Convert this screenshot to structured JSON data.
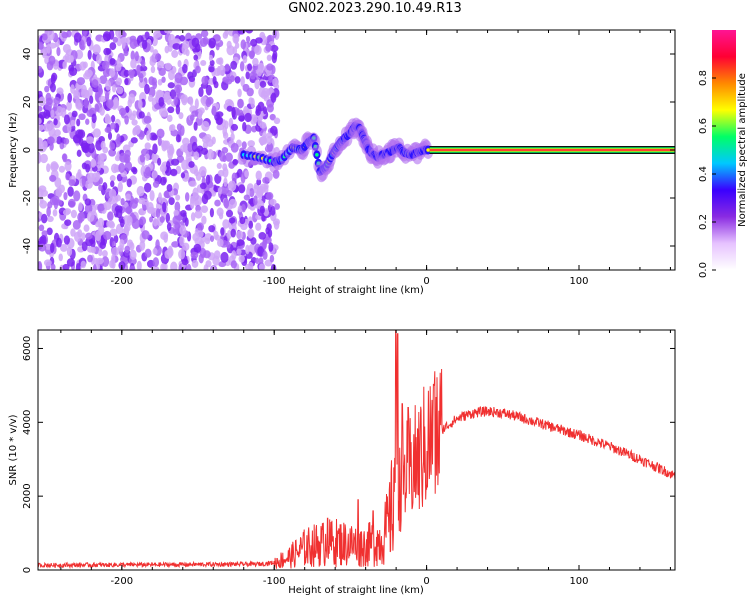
{
  "title": "GN02.2023.290.10.49.R13",
  "colors": {
    "snr_line": "#f03030",
    "cloud": "#7a22f0",
    "cloud_light": "#cfa6f8",
    "colorbar_stops": [
      "#ffffff",
      "#e6c2ff",
      "#8a2be2",
      "#3a00ff",
      "#00c8ff",
      "#00ff66",
      "#ffff00",
      "#ff8800",
      "#ff0033",
      "#ff1493"
    ]
  },
  "chart_data": [
    {
      "type": "heatmap",
      "xlabel": "Height of straight line (km)",
      "ylabel": "Frequency (Hz)",
      "xlim": [
        -255,
        163
      ],
      "ylim": [
        -50,
        50
      ],
      "xticks": [
        -200,
        -100,
        0,
        100
      ],
      "yticks": [
        -40,
        -20,
        0,
        20,
        40
      ],
      "grid": false,
      "colorbar": {
        "label": "Normalized spectral amplitude",
        "range": [
          0,
          1
        ],
        "ticks": [
          "0.0",
          "0.2",
          "0.4",
          "0.6",
          "0.8"
        ]
      },
      "noise_region_x": [
        -255,
        -98
      ],
      "ridge": {
        "x": [
          -120,
          -110,
          -100,
          -95,
          -88,
          -82,
          -78,
          -74,
          -70,
          -66,
          -62,
          -58,
          -54,
          -50,
          -47,
          -44,
          -42,
          -40,
          -38,
          -35,
          -32,
          -29,
          -25,
          -22,
          -18,
          -15,
          -10,
          -6,
          -2,
          2
        ],
        "freq": [
          -2,
          -3,
          -5,
          -4,
          1,
          0,
          3,
          5,
          -9,
          -7,
          -2,
          2,
          5,
          7,
          10,
          9,
          6,
          3,
          0,
          -2,
          -3,
          -2,
          -1,
          0,
          1,
          -1,
          -2,
          -1,
          0,
          0
        ]
      },
      "band": {
        "x_start": 2,
        "x_end": 163,
        "freq": 0
      }
    },
    {
      "type": "line",
      "xlabel": "Height of straight line (km)",
      "ylabel": "SNR (10 * v/v)",
      "xlim": [
        -255,
        163
      ],
      "ylim": [
        0,
        6500
      ],
      "xticks": [
        -200,
        -100,
        0,
        100
      ],
      "yticks": [
        0,
        2000,
        4000,
        6000
      ],
      "grid": false,
      "series": [
        {
          "x": [
            -255,
            -200,
            -150,
            -110,
            -100,
            -90,
            -80,
            -70,
            -60,
            -50,
            -40,
            -30,
            -25,
            -22,
            -20,
            -18,
            -15,
            -10,
            -5,
            0,
            10,
            20,
            30,
            40,
            50,
            60,
            80,
            100,
            120,
            140,
            163
          ],
          "y": [
            130,
            140,
            150,
            160,
            200,
            350,
            600,
            700,
            750,
            700,
            650,
            800,
            1200,
            1800,
            4000,
            2200,
            2500,
            2800,
            3000,
            3400,
            3800,
            4100,
            4250,
            4300,
            4250,
            4150,
            3900,
            3650,
            3350,
            3000,
            2550
          ],
          "spikes": [
            {
              "x": -19,
              "y": 6400
            },
            {
              "x": 5,
              "y": 5000
            },
            {
              "x": -16,
              "y": 4500
            },
            {
              "x": -12,
              "y": 4400
            },
            {
              "x": -65,
              "y": 1400
            },
            {
              "x": -45,
              "y": 1900
            },
            {
              "x": -35,
              "y": 1600
            }
          ]
        }
      ]
    }
  ]
}
